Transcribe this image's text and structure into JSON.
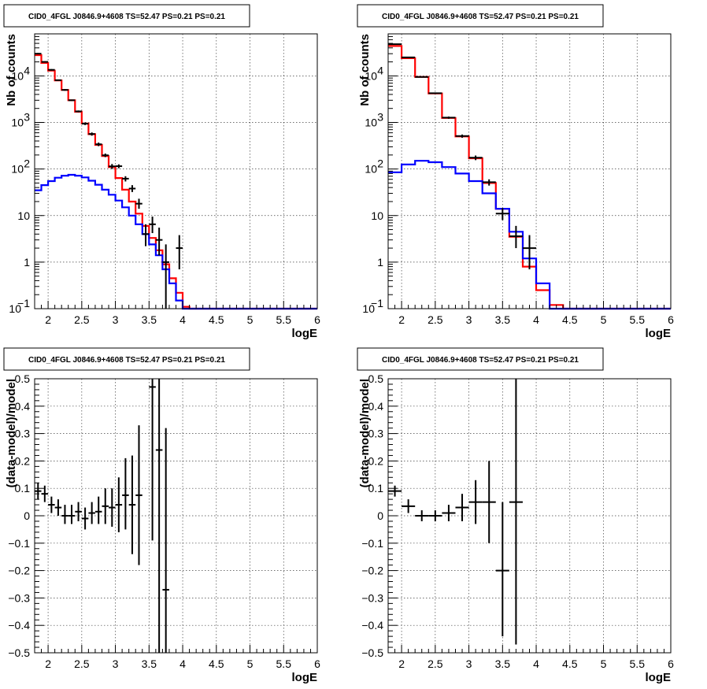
{
  "chart_data": [
    {
      "type": "histogram",
      "title": "CID0_4FGL J0846.9+4608 TS=52.47 PS=0.21 PS=0.21",
      "xlabel": "logE",
      "ylabel": "Nb of counts",
      "xlim": [
        1.8,
        6
      ],
      "ylim": [
        0.1,
        80000
      ],
      "yscale": "log",
      "grid": true,
      "x_ticks": [
        "2",
        "2.5",
        "3",
        "3.5",
        "4",
        "4.5",
        "5",
        "5.5",
        "6"
      ],
      "y_ticks": [
        "10^-1",
        "1",
        "10",
        "10^2",
        "10^3",
        "10^4"
      ],
      "bin_edges": [
        1.8,
        1.9,
        2.0,
        2.1,
        2.2,
        2.3,
        2.4,
        2.5,
        2.6,
        2.7,
        2.8,
        2.9,
        3.0,
        3.1,
        3.2,
        3.3,
        3.4,
        3.5,
        3.6,
        3.7,
        3.8,
        3.9,
        4.0,
        4.1,
        4.2,
        4.3,
        4.4,
        4.5,
        4.6,
        4.7,
        4.8,
        4.9,
        5.0,
        5.1,
        5.2,
        5.3,
        5.4,
        5.5,
        5.6,
        5.7,
        5.8,
        5.9,
        6.0
      ],
      "series": [
        {
          "color": "#ff0000",
          "style": "step",
          "values": [
            28000,
            19000,
            13000,
            8000,
            5000,
            3000,
            1700,
            950,
            560,
            330,
            190,
            110,
            64,
            36,
            20,
            11,
            6,
            3.3,
            1.8,
            0.9,
            0.45,
            0.22,
            0.11,
            0.1,
            0.1,
            0.1,
            0.1,
            0.1,
            0.1,
            0.1,
            0.1,
            0.1,
            0.1,
            0.1,
            0.1,
            0.1,
            0.1,
            0.1,
            0.1,
            0.1,
            0.1,
            0.1
          ]
        },
        {
          "color": "#0000ff",
          "style": "step",
          "values": [
            35,
            45,
            55,
            65,
            72,
            75,
            72,
            66,
            56,
            46,
            36,
            28,
            21,
            15,
            10,
            6.5,
            4,
            2.4,
            1.4,
            0.7,
            0.35,
            0.15,
            0.1,
            0.1,
            0.1,
            0.1,
            0.1,
            0.1,
            0.1,
            0.1,
            0.1,
            0.1,
            0.1,
            0.1,
            0.1,
            0.1,
            0.1,
            0.1,
            0.1,
            0.1,
            0.1,
            0.1
          ]
        },
        {
          "color": "#000000",
          "style": "errorbar",
          "points": [
            {
              "x": 1.85,
              "y": 30000,
              "lo": 29000,
              "hi": 31000
            },
            {
              "x": 1.95,
              "y": 20000,
              "lo": 19500,
              "hi": 20500
            },
            {
              "x": 2.05,
              "y": 13500,
              "lo": 13000,
              "hi": 14000
            },
            {
              "x": 2.15,
              "y": 8100,
              "lo": 7900,
              "hi": 8300
            },
            {
              "x": 2.25,
              "y": 5000,
              "lo": 4800,
              "hi": 5200
            },
            {
              "x": 2.35,
              "y": 3000,
              "lo": 2900,
              "hi": 3100
            },
            {
              "x": 2.45,
              "y": 1730,
              "lo": 1650,
              "hi": 1810
            },
            {
              "x": 2.55,
              "y": 940,
              "lo": 880,
              "hi": 1000
            },
            {
              "x": 2.65,
              "y": 565,
              "lo": 520,
              "hi": 610
            },
            {
              "x": 2.75,
              "y": 340,
              "lo": 310,
              "hi": 370
            },
            {
              "x": 2.85,
              "y": 197,
              "lo": 180,
              "hi": 215
            },
            {
              "x": 2.95,
              "y": 114,
              "lo": 100,
              "hi": 128
            },
            {
              "x": 3.05,
              "y": 115,
              "lo": 104,
              "hi": 126
            },
            {
              "x": 3.15,
              "y": 62,
              "lo": 54,
              "hi": 70
            },
            {
              "x": 3.25,
              "y": 38,
              "lo": 32,
              "hi": 45
            },
            {
              "x": 3.35,
              "y": 18,
              "lo": 14,
              "hi": 23
            },
            {
              "x": 3.45,
              "y": 4,
              "lo": 2.2,
              "hi": 6.5
            },
            {
              "x": 3.55,
              "y": 6.5,
              "lo": 4.2,
              "hi": 9.5
            },
            {
              "x": 3.65,
              "y": 3,
              "lo": 1.4,
              "hi": 5.5
            },
            {
              "x": 3.75,
              "y": 1,
              "lo": 0.1,
              "hi": 2.4
            },
            {
              "x": 3.95,
              "y": 2,
              "lo": 0.7,
              "hi": 3.8
            }
          ]
        }
      ]
    },
    {
      "type": "histogram",
      "title": "CID0_4FGL J0846.9+4608 TS=52.47 PS=0.21 PS=0.21",
      "xlabel": "logE",
      "ylabel": "Nb of counts",
      "xlim": [
        1.8,
        6
      ],
      "ylim": [
        0.1,
        80000
      ],
      "yscale": "log",
      "grid": true,
      "x_ticks": [
        "2",
        "2.5",
        "3",
        "3.5",
        "4",
        "4.5",
        "5",
        "5.5",
        "6"
      ],
      "y_ticks": [
        "10^-1",
        "1",
        "10",
        "10^2",
        "10^3",
        "10^4"
      ],
      "bin_edges": [
        1.8,
        2.0,
        2.2,
        2.4,
        2.6,
        2.8,
        3.0,
        3.2,
        3.4,
        3.6,
        3.8,
        4.0,
        4.2,
        4.4,
        4.6,
        4.8,
        5.0,
        5.2,
        5.4,
        5.6,
        5.8,
        6.0
      ],
      "series": [
        {
          "color": "#ff0000",
          "style": "step",
          "values": [
            44000,
            24000,
            9500,
            4200,
            1250,
            500,
            170,
            50,
            14,
            3.5,
            0.8,
            0.25,
            0.12,
            0.1,
            0.1,
            0.1,
            0.1,
            0.1,
            0.1,
            0.1,
            0.1
          ]
        },
        {
          "color": "#0000ff",
          "style": "step",
          "values": [
            85,
            125,
            150,
            140,
            110,
            80,
            55,
            30,
            14,
            4.5,
            1.2,
            0.35,
            0.1,
            0.1,
            0.1,
            0.1,
            0.1,
            0.1,
            0.1,
            0.1,
            0.1
          ]
        },
        {
          "color": "#000000",
          "style": "errorbar",
          "points": [
            {
              "x": 1.9,
              "y": 48000,
              "lo": 47000,
              "hi": 49000
            },
            {
              "x": 2.1,
              "y": 25000,
              "lo": 24500,
              "hi": 25500
            },
            {
              "x": 2.3,
              "y": 9500,
              "lo": 9300,
              "hi": 9700
            },
            {
              "x": 2.5,
              "y": 4250,
              "lo": 4100,
              "hi": 4400
            },
            {
              "x": 2.7,
              "y": 1270,
              "lo": 1200,
              "hi": 1340
            },
            {
              "x": 2.9,
              "y": 510,
              "lo": 470,
              "hi": 550
            },
            {
              "x": 3.1,
              "y": 175,
              "lo": 155,
              "hi": 195
            },
            {
              "x": 3.3,
              "y": 52,
              "lo": 44,
              "hi": 60
            },
            {
              "x": 3.5,
              "y": 11,
              "lo": 8,
              "hi": 14.5
            },
            {
              "x": 3.7,
              "y": 3.6,
              "lo": 2,
              "hi": 6
            },
            {
              "x": 3.9,
              "y": 2,
              "lo": 0.7,
              "hi": 3.8
            }
          ]
        }
      ]
    },
    {
      "type": "scatter",
      "title": "CID0_4FGL J0846.9+4608 TS=52.47 PS=0.21 PS=0.21",
      "xlabel": "logE",
      "ylabel": "(data-model)/model",
      "xlim": [
        1.8,
        6
      ],
      "ylim": [
        -0.5,
        0.5
      ],
      "grid": true,
      "x_ticks": [
        "2",
        "2.5",
        "3",
        "3.5",
        "4",
        "4.5",
        "5",
        "5.5",
        "6"
      ],
      "y_ticks": [
        "-0.5",
        "-0.4",
        "-0.3",
        "-0.2",
        "-0.1",
        "0",
        "0.1",
        "0.2",
        "0.3",
        "0.4",
        "0.5"
      ],
      "series": [
        {
          "color": "#000000",
          "style": "errorbar",
          "xerr": 0.05,
          "points": [
            {
              "x": 1.85,
              "y": 0.09,
              "lo": 0.06,
              "hi": 0.12
            },
            {
              "x": 1.95,
              "y": 0.08,
              "lo": 0.05,
              "hi": 0.11
            },
            {
              "x": 2.05,
              "y": 0.04,
              "lo": 0.01,
              "hi": 0.07
            },
            {
              "x": 2.15,
              "y": 0.03,
              "lo": 0.0,
              "hi": 0.06
            },
            {
              "x": 2.25,
              "y": 0.0,
              "lo": -0.03,
              "hi": 0.04
            },
            {
              "x": 2.35,
              "y": 0.0,
              "lo": -0.03,
              "hi": 0.04
            },
            {
              "x": 2.45,
              "y": 0.015,
              "lo": -0.02,
              "hi": 0.05
            },
            {
              "x": 2.55,
              "y": -0.01,
              "lo": -0.05,
              "hi": 0.03
            },
            {
              "x": 2.65,
              "y": 0.01,
              "lo": -0.03,
              "hi": 0.05
            },
            {
              "x": 2.75,
              "y": 0.015,
              "lo": -0.03,
              "hi": 0.07
            },
            {
              "x": 2.85,
              "y": 0.035,
              "lo": -0.03,
              "hi": 0.1
            },
            {
              "x": 2.95,
              "y": 0.03,
              "lo": -0.04,
              "hi": 0.1
            },
            {
              "x": 3.05,
              "y": 0.04,
              "lo": -0.06,
              "hi": 0.14
            },
            {
              "x": 3.15,
              "y": 0.075,
              "lo": -0.05,
              "hi": 0.21
            },
            {
              "x": 3.25,
              "y": 0.04,
              "lo": -0.14,
              "hi": 0.22
            },
            {
              "x": 3.35,
              "y": 0.075,
              "lo": -0.18,
              "hi": 0.33
            },
            {
              "x": 3.55,
              "y": 0.47,
              "lo": -0.09,
              "hi": 0.5
            },
            {
              "x": 3.65,
              "y": 0.24,
              "lo": -0.5,
              "hi": 0.5
            },
            {
              "x": 3.75,
              "y": -0.27,
              "lo": -0.5,
              "hi": 0.32
            }
          ]
        }
      ]
    },
    {
      "type": "scatter",
      "title": "CID0_4FGL J0846.9+4608 TS=52.47 PS=0.21 PS=0.21",
      "xlabel": "logE",
      "ylabel": "(data-model)/model",
      "xlim": [
        1.8,
        6
      ],
      "ylim": [
        -0.5,
        0.5
      ],
      "grid": true,
      "x_ticks": [
        "2",
        "2.5",
        "3",
        "3.5",
        "4",
        "4.5",
        "5",
        "5.5",
        "6"
      ],
      "y_ticks": [
        "-0.5",
        "-0.4",
        "-0.3",
        "-0.2",
        "-0.1",
        "0",
        "0.1",
        "0.2",
        "0.3",
        "0.4",
        "0.5"
      ],
      "series": [
        {
          "color": "#000000",
          "style": "errorbar",
          "xerr": 0.1,
          "points": [
            {
              "x": 1.9,
              "y": 0.09,
              "lo": 0.07,
              "hi": 0.11
            },
            {
              "x": 2.1,
              "y": 0.035,
              "lo": 0.01,
              "hi": 0.06
            },
            {
              "x": 2.3,
              "y": 0.0,
              "lo": -0.02,
              "hi": 0.02
            },
            {
              "x": 2.5,
              "y": 0.0,
              "lo": -0.02,
              "hi": 0.02
            },
            {
              "x": 2.7,
              "y": 0.01,
              "lo": -0.02,
              "hi": 0.04
            },
            {
              "x": 2.9,
              "y": 0.03,
              "lo": -0.02,
              "hi": 0.08
            },
            {
              "x": 3.1,
              "y": 0.05,
              "lo": -0.03,
              "hi": 0.13
            },
            {
              "x": 3.3,
              "y": 0.05,
              "lo": -0.1,
              "hi": 0.2
            },
            {
              "x": 3.5,
              "y": -0.2,
              "lo": -0.44,
              "hi": 0.05
            },
            {
              "x": 3.7,
              "y": 0.05,
              "lo": -0.47,
              "hi": 0.5
            }
          ]
        }
      ]
    }
  ]
}
